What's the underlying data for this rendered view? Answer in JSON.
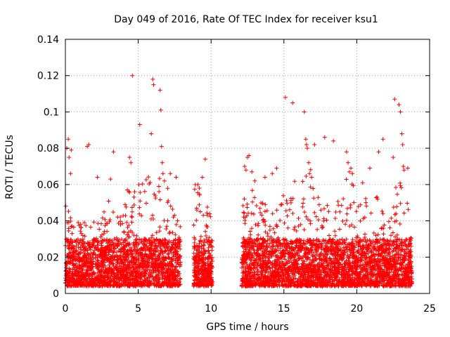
{
  "chart_data": {
    "type": "scatter",
    "title": "Day 049 of 2016, Rate Of TEC Index for receiver ksu1",
    "xlabel": "GPS time / hours",
    "ylabel": "ROTI / TECUs",
    "xlim": [
      0,
      25
    ],
    "ylim": [
      0,
      0.14
    ],
    "xticks": [
      "0",
      "5",
      "10",
      "15",
      "20",
      "25"
    ],
    "yticks": [
      "0",
      "0.02",
      "0.04",
      "0.06",
      "0.08",
      "0.1",
      "0.12",
      "0.14"
    ],
    "grid": true,
    "marker": "+",
    "color": "#ff0000",
    "series": [
      {
        "name": "ROTI",
        "x": [
          0.1,
          0.2,
          0.25,
          0.35,
          0.4,
          1.5,
          1.6,
          2.2,
          3.1,
          3.3,
          4.4,
          4.5,
          4.6,
          5.05,
          5.1,
          5.9,
          6.0,
          6.05,
          6.5,
          6.55,
          6.6,
          6.65,
          6.7,
          6.8,
          7.2,
          7.6,
          9.1,
          9.2,
          9.4,
          9.6,
          12.3,
          12.4,
          12.5,
          12.6,
          12.8,
          13.0,
          13.7,
          14.2,
          14.5,
          15.1,
          15.6,
          16.4,
          16.5,
          16.55,
          16.6,
          16.7,
          16.75,
          16.9,
          17.1,
          17.8,
          18.4,
          19.3,
          19.4,
          19.5,
          19.6,
          19.7,
          20.4,
          20.9,
          21.5,
          21.8,
          22.5,
          22.6,
          22.9,
          23.0,
          23.1,
          23.15,
          23.2,
          23.25,
          23.5,
          23.6
        ]
      }
    ]
  }
}
